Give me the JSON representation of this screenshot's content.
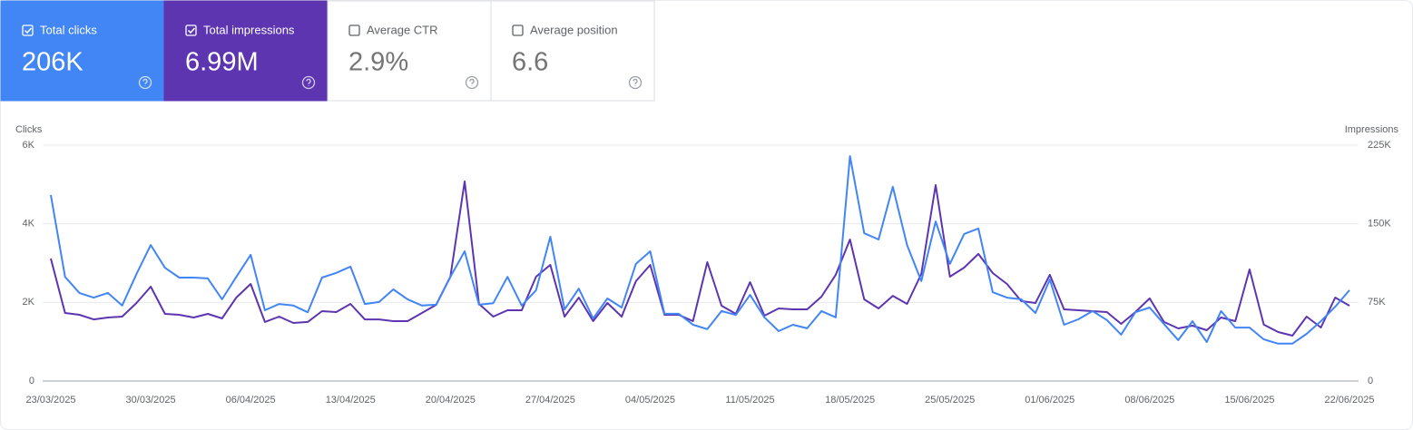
{
  "cards": [
    {
      "label": "Total clicks",
      "value": "206K",
      "checked": true,
      "color": "#4285f4"
    },
    {
      "label": "Total impressions",
      "value": "6.99M",
      "checked": true,
      "color": "#5e35b1"
    },
    {
      "label": "Average CTR",
      "value": "2.9%",
      "checked": false,
      "color": "#ffffff"
    },
    {
      "label": "Average position",
      "value": "6.6",
      "checked": false,
      "color": "#ffffff"
    }
  ],
  "chart_data": {
    "type": "line",
    "y_label": "Clicks",
    "y2_label": "Impressions",
    "categories": [
      "23/03/2025",
      null,
      null,
      null,
      null,
      null,
      null,
      "30/03/2025",
      null,
      null,
      null,
      null,
      null,
      null,
      "06/04/2025",
      null,
      null,
      null,
      null,
      null,
      null,
      "13/04/2025",
      null,
      null,
      null,
      null,
      null,
      null,
      "20/04/2025",
      null,
      null,
      null,
      null,
      null,
      null,
      "27/04/2025",
      null,
      null,
      null,
      null,
      null,
      null,
      "04/05/2025",
      null,
      null,
      null,
      null,
      null,
      null,
      "11/05/2025",
      null,
      null,
      null,
      null,
      null,
      null,
      "18/05/2025",
      null,
      null,
      null,
      null,
      null,
      null,
      "25/05/2025",
      null,
      null,
      null,
      null,
      null,
      null,
      "01/06/2025",
      null,
      null,
      null,
      null,
      null,
      null,
      "08/06/2025",
      null,
      null,
      null,
      null,
      null,
      null,
      "15/06/2025",
      null,
      null,
      null,
      null,
      null,
      null,
      "22/06/2025"
    ],
    "series": [
      {
        "name": "Clicks",
        "color": "#4285f4",
        "axis": "y",
        "values": [
          4730,
          2650,
          2240,
          2120,
          2240,
          1920,
          2720,
          3460,
          2880,
          2630,
          2630,
          2610,
          2080,
          2650,
          3210,
          1800,
          1960,
          1920,
          1750,
          2630,
          2750,
          2910,
          1960,
          2010,
          2330,
          2080,
          1920,
          1940,
          2650,
          3300,
          1940,
          1980,
          2650,
          1920,
          2310,
          3670,
          1820,
          2350,
          1590,
          2100,
          1870,
          2980,
          3300,
          1710,
          1710,
          1430,
          1320,
          1780,
          1680,
          2190,
          1620,
          1270,
          1430,
          1340,
          1780,
          1620,
          5720,
          3760,
          3600,
          4940,
          3460,
          2540,
          4060,
          2980,
          3740,
          3880,
          2260,
          2120,
          2080,
          1730,
          2580,
          1430,
          1570,
          1780,
          1550,
          1180,
          1750,
          1870,
          1450,
          1040,
          1520,
          990,
          1780,
          1360,
          1360,
          1060,
          950,
          950,
          1200,
          1520,
          1890,
          2310
        ]
      },
      {
        "name": "Impressions",
        "color": "#5e35b1",
        "axis": "y2",
        "values": [
          116800,
          64900,
          63200,
          58800,
          60600,
          61400,
          74400,
          90000,
          64000,
          63200,
          60600,
          64000,
          59700,
          79600,
          92600,
          56300,
          61400,
          55400,
          56300,
          66600,
          65800,
          73600,
          58800,
          58800,
          57100,
          57100,
          64900,
          72700,
          99500,
          190400,
          73600,
          61400,
          67500,
          67500,
          99500,
          110800,
          61400,
          79600,
          57100,
          74400,
          61400,
          95200,
          110800,
          63200,
          63200,
          57100,
          113400,
          71800,
          64000,
          94300,
          62300,
          69200,
          68400,
          68400,
          80500,
          101300,
          135000,
          77900,
          69200,
          81300,
          73600,
          102100,
          186900,
          99500,
          108200,
          121200,
          103000,
          92600,
          76200,
          74400,
          101300,
          68400,
          67500,
          66600,
          65800,
          54500,
          65800,
          78800,
          56300,
          50200,
          52800,
          48500,
          60600,
          57100,
          106400,
          53700,
          46700,
          43300,
          61400,
          51100,
          79600,
          71800
        ]
      }
    ],
    "ylim": [
      0,
      6000
    ],
    "yticks": [
      0,
      {
        "value": 2000,
        "label": "2K"
      },
      {
        "value": 4000,
        "label": "4K"
      },
      {
        "value": 6000,
        "label": "6K"
      }
    ],
    "y2lim": [
      0,
      225000
    ],
    "y2ticks": [
      0,
      {
        "value": 75000,
        "label": "75K"
      },
      {
        "value": 150000,
        "label": "150K"
      },
      {
        "value": 225000,
        "label": "225K"
      }
    ],
    "grid": true
  }
}
